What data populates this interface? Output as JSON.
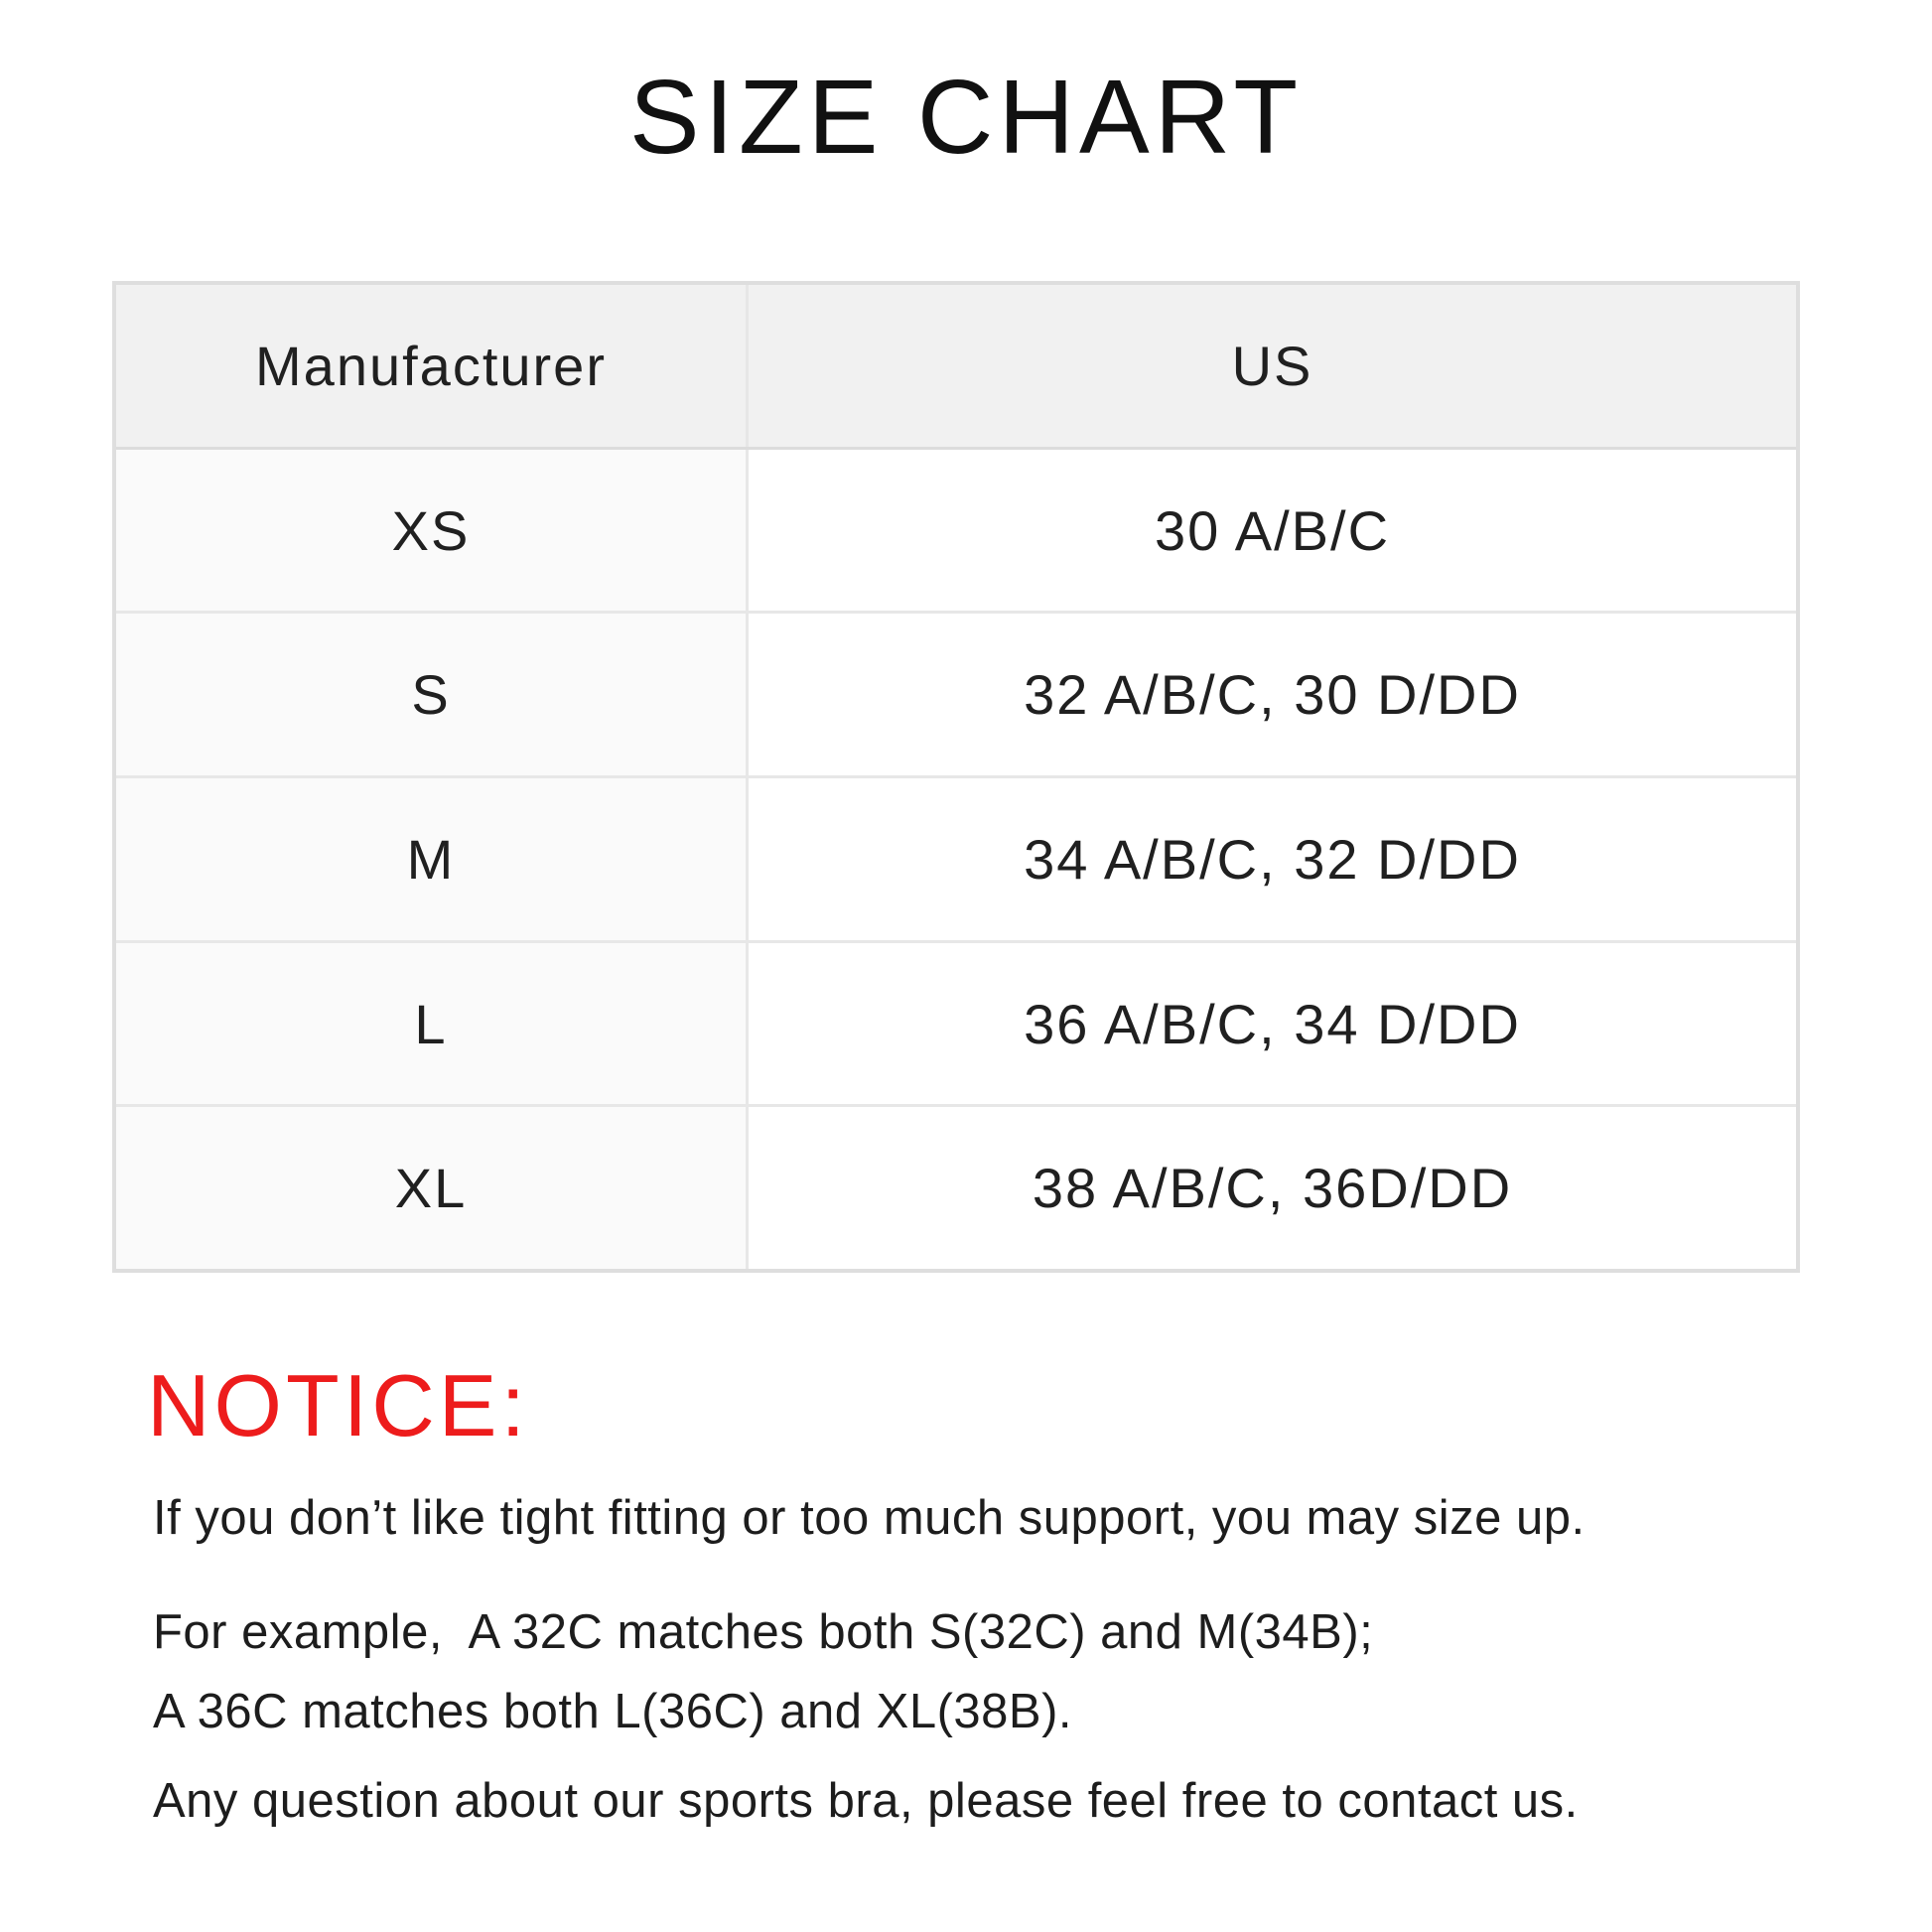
{
  "title": "SIZE CHART",
  "table": {
    "columns": {
      "manufacturer": "Manufacturer",
      "us": "US"
    },
    "rows": [
      {
        "manufacturer": "XS",
        "us": "30 A/B/C"
      },
      {
        "manufacturer": "S",
        "us": "32 A/B/C, 30 D/DD"
      },
      {
        "manufacturer": "M",
        "us": "34 A/B/C, 32 D/DD"
      },
      {
        "manufacturer": "L",
        "us": "36 A/B/C, 34 D/DD"
      },
      {
        "manufacturer": "XL",
        "us": "38 A/B/C, 36D/DD"
      }
    ]
  },
  "notice": {
    "heading": "NOTICE:",
    "line1": "If you don’t like tight fitting or too much support, you may size up.",
    "line2": "For example,  A 32C matches both S(32C) and M(34B);",
    "line3": "A 36C matches both L(36C) and XL(38B).",
    "line4": "Any question about our sports bra, please feel free to contact us."
  },
  "colors": {
    "notice_red": "#ed1c1c",
    "header_bg": "#f1f1f1",
    "row_label_bg": "#fafafa",
    "table_border": "#dedede",
    "text": "#1e1e1e"
  }
}
